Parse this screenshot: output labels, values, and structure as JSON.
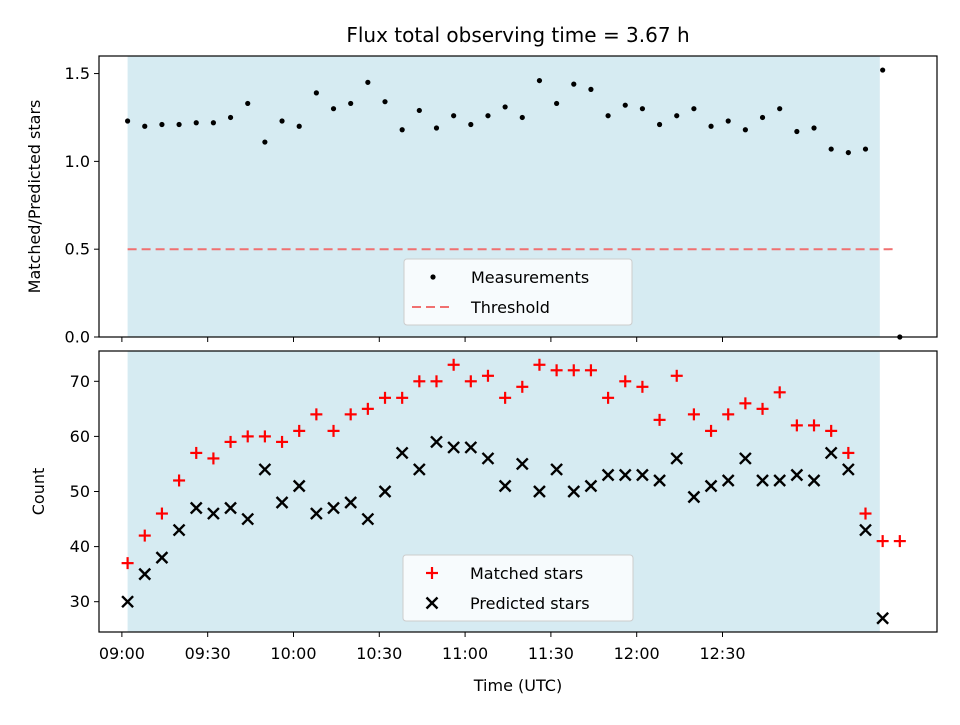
{
  "chart_data": [
    {
      "type": "scatter",
      "title": "Flux total observing time = 3.67 h",
      "xlabel": "",
      "ylabel": "Matched/Predicted stars",
      "ylim": [
        0.0,
        1.6
      ],
      "yticks": [
        {
          "value": 0.0,
          "label": "0.0"
        },
        {
          "value": 0.5,
          "label": "0.5"
        },
        {
          "value": 1.0,
          "label": "1.0"
        },
        {
          "value": 1.5,
          "label": "1.5"
        }
      ],
      "x_units": "minutes after 09:00 UTC",
      "xlim": [
        -8,
        285
      ],
      "observing_window": [
        2,
        265
      ],
      "series": [
        {
          "name": "Measurements",
          "color": "#000000",
          "marker": "dot",
          "x": [
            2,
            8,
            14,
            20,
            26,
            32,
            38,
            44,
            50,
            56,
            62,
            68,
            74,
            80,
            86,
            92,
            98,
            104,
            110,
            116,
            122,
            128,
            134,
            140,
            146,
            152,
            158,
            164,
            170,
            176,
            182,
            188,
            194,
            200,
            206,
            212,
            218,
            224,
            230,
            236,
            242,
            248,
            254,
            260,
            266,
            272
          ],
          "values": [
            1.23,
            1.2,
            1.21,
            1.21,
            1.22,
            1.22,
            1.25,
            1.33,
            1.11,
            1.23,
            1.2,
            1.39,
            1.3,
            1.33,
            1.45,
            1.34,
            1.18,
            1.29,
            1.19,
            1.26,
            1.21,
            1.26,
            1.31,
            1.25,
            1.46,
            1.33,
            1.44,
            1.41,
            1.26,
            1.32,
            1.3,
            1.21,
            1.26,
            1.3,
            1.2,
            1.23,
            1.18,
            1.25,
            1.3,
            1.17,
            1.19,
            1.07,
            1.05,
            1.07,
            1.52,
            0.0
          ]
        },
        {
          "name": "Threshold",
          "color": "#f07070",
          "style": "dashed",
          "x": [
            2,
            270
          ],
          "values": [
            0.5,
            0.5
          ]
        }
      ],
      "legend": {
        "position": "bottom-center",
        "entries": [
          "Measurements",
          "Threshold"
        ]
      }
    },
    {
      "type": "scatter",
      "title": "",
      "xlabel": "Time (UTC)",
      "ylabel": "Count",
      "ylim": [
        24.5,
        75.5
      ],
      "yticks": [
        {
          "value": 30,
          "label": "30"
        },
        {
          "value": 40,
          "label": "40"
        },
        {
          "value": 50,
          "label": "50"
        },
        {
          "value": 60,
          "label": "60"
        },
        {
          "value": 70,
          "label": "70"
        }
      ],
      "xticks": [
        {
          "value": 0,
          "label": "09:00"
        },
        {
          "value": 30,
          "label": "09:30"
        },
        {
          "value": 60,
          "label": "10:00"
        },
        {
          "value": 90,
          "label": "10:30"
        },
        {
          "value": 120,
          "label": "11:00"
        },
        {
          "value": 150,
          "label": "11:30"
        },
        {
          "value": 180,
          "label": "12:00"
        },
        {
          "value": 210,
          "label": "12:30"
        }
      ],
      "x_units": "minutes after 09:00 UTC",
      "xlim": [
        -8,
        285
      ],
      "observing_window": [
        2,
        265
      ],
      "series": [
        {
          "name": "Matched stars",
          "color": "#ff0000",
          "marker": "plus",
          "x": [
            2,
            8,
            14,
            20,
            26,
            32,
            38,
            44,
            50,
            56,
            62,
            68,
            74,
            80,
            86,
            92,
            98,
            104,
            110,
            116,
            122,
            128,
            134,
            140,
            146,
            152,
            158,
            164,
            170,
            176,
            182,
            188,
            194,
            200,
            206,
            212,
            218,
            224,
            230,
            236,
            242,
            248,
            254,
            260,
            266,
            272
          ],
          "values": [
            37,
            42,
            46,
            52,
            57,
            56,
            59,
            60,
            60,
            59,
            61,
            64,
            61,
            64,
            65,
            67,
            67,
            70,
            70,
            73,
            70,
            71,
            67,
            69,
            73,
            72,
            72,
            72,
            67,
            70,
            69,
            63,
            71,
            64,
            61,
            64,
            66,
            65,
            68,
            62,
            62,
            61,
            57,
            46,
            41,
            41
          ]
        },
        {
          "name": "Predicted stars",
          "color": "#000000",
          "marker": "x",
          "x": [
            2,
            8,
            14,
            20,
            26,
            32,
            38,
            44,
            50,
            56,
            62,
            68,
            74,
            80,
            86,
            92,
            98,
            104,
            110,
            116,
            122,
            128,
            134,
            140,
            146,
            152,
            158,
            164,
            170,
            176,
            182,
            188,
            194,
            200,
            206,
            212,
            218,
            224,
            230,
            236,
            242,
            248,
            254,
            260,
            266
          ],
          "values": [
            30,
            35,
            38,
            43,
            47,
            46,
            47,
            45,
            54,
            48,
            51,
            46,
            47,
            48,
            45,
            50,
            57,
            54,
            59,
            58,
            58,
            56,
            51,
            55,
            50,
            54,
            50,
            51,
            53,
            53,
            53,
            52,
            56,
            49,
            51,
            52,
            56,
            52,
            52,
            53,
            52,
            57,
            54,
            43,
            27
          ]
        }
      ],
      "legend": {
        "position": "bottom-center",
        "entries": [
          "Matched stars",
          "Predicted stars"
        ]
      }
    }
  ]
}
